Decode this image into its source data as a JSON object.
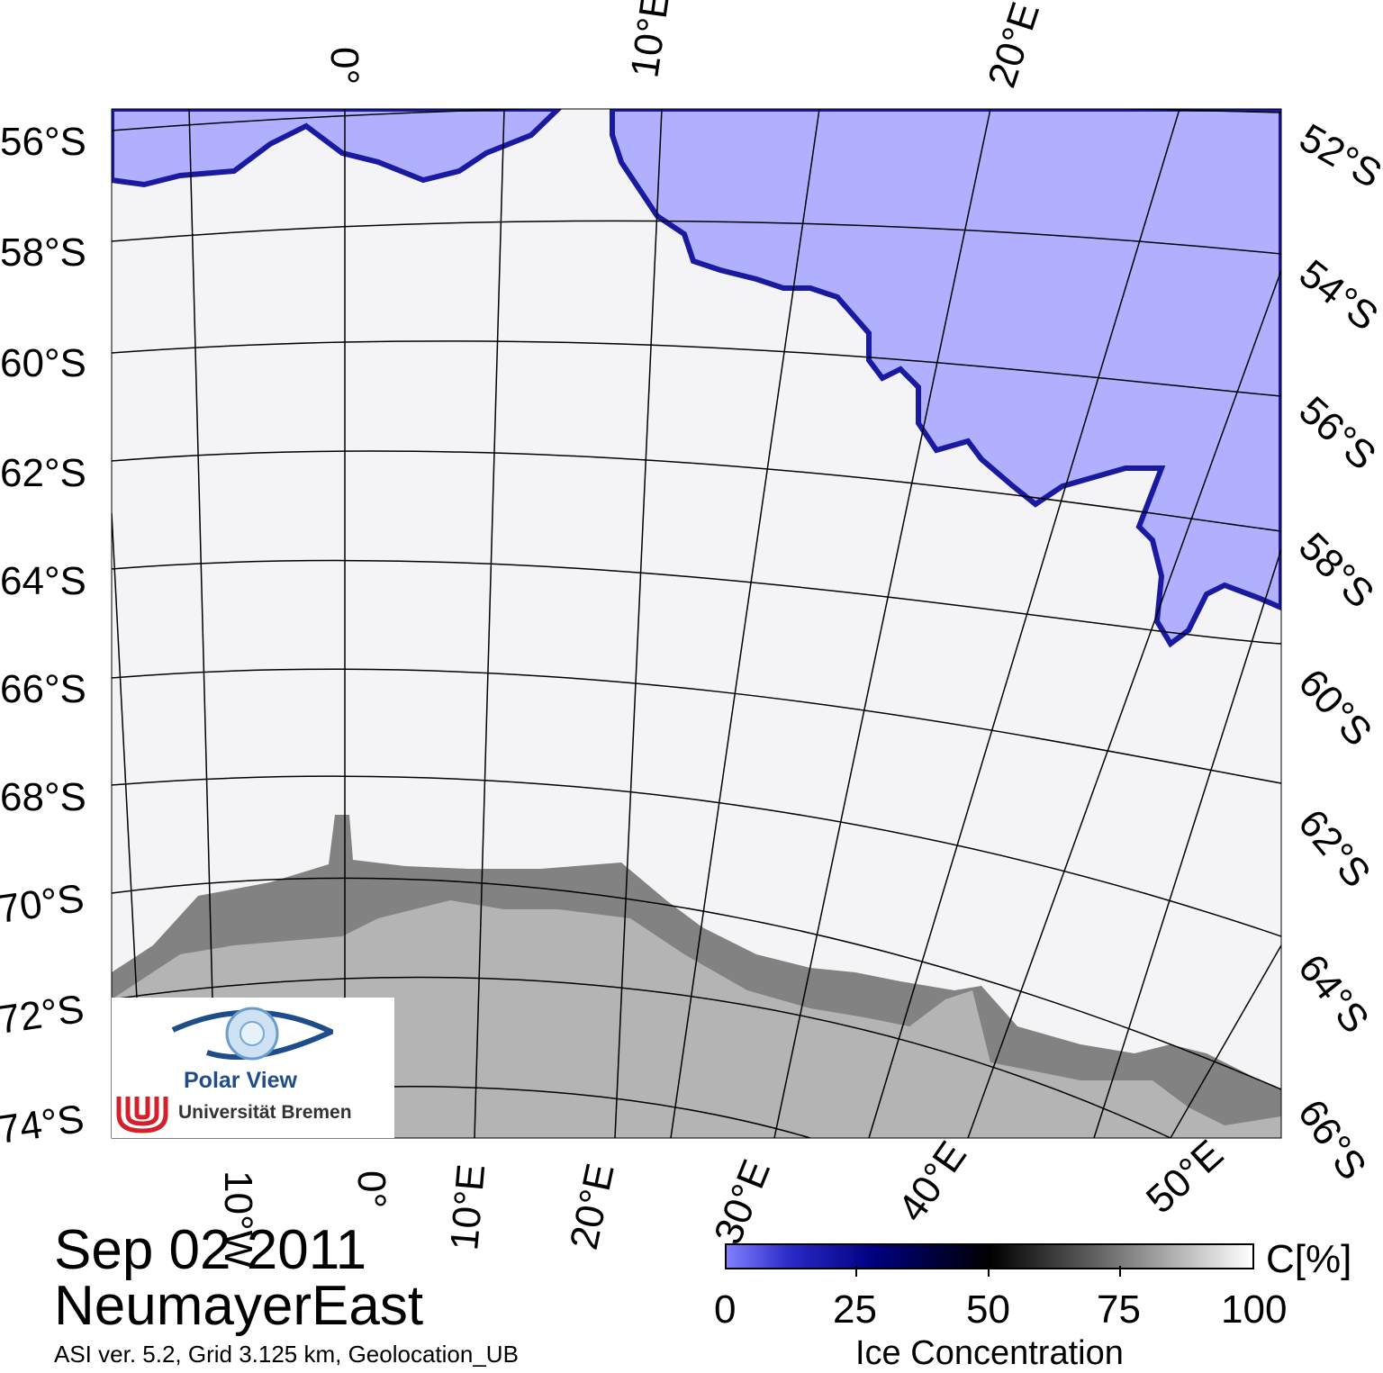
{
  "map": {
    "lat_labels_left": [
      "56°S",
      "58°S",
      "60°S",
      "62°S",
      "64°S",
      "66°S",
      "68°S",
      "70°S",
      "72°S",
      "74°S"
    ],
    "lat_labels_right": [
      "52°S",
      "54°S",
      "56°S",
      "58°S",
      "60°S",
      "62°S",
      "64°S",
      "66°S"
    ],
    "lon_labels_top": [
      "0°",
      "10°E",
      "20°E"
    ],
    "lon_labels_bottom": [
      "10°W",
      "0°",
      "10°E",
      "20°E",
      "30°E",
      "40°E",
      "50°E"
    ],
    "colors": {
      "open_water": "#b0b0ff",
      "ice_edge": "#1a1aa0",
      "sea_ice": "#f4f4f6",
      "land": "#b4b4b4",
      "ice_shelf": "#828282",
      "graticule": "#000000"
    }
  },
  "logo": {
    "title": "Polar View",
    "institution": "Universität Bremen"
  },
  "caption": {
    "date": "Sep 02 2011",
    "region": "NeumayerEast",
    "details": "ASI ver. 5.2,  Grid 3.125 km, Geolocation_UB"
  },
  "colorbar": {
    "ticks": [
      "0",
      "25",
      "50",
      "75",
      "100"
    ],
    "unit": "C[%]",
    "title": "Ice Concentration",
    "colors": [
      "#8080ff",
      "#000080",
      "#000000",
      "#808080",
      "#ffffff"
    ]
  }
}
